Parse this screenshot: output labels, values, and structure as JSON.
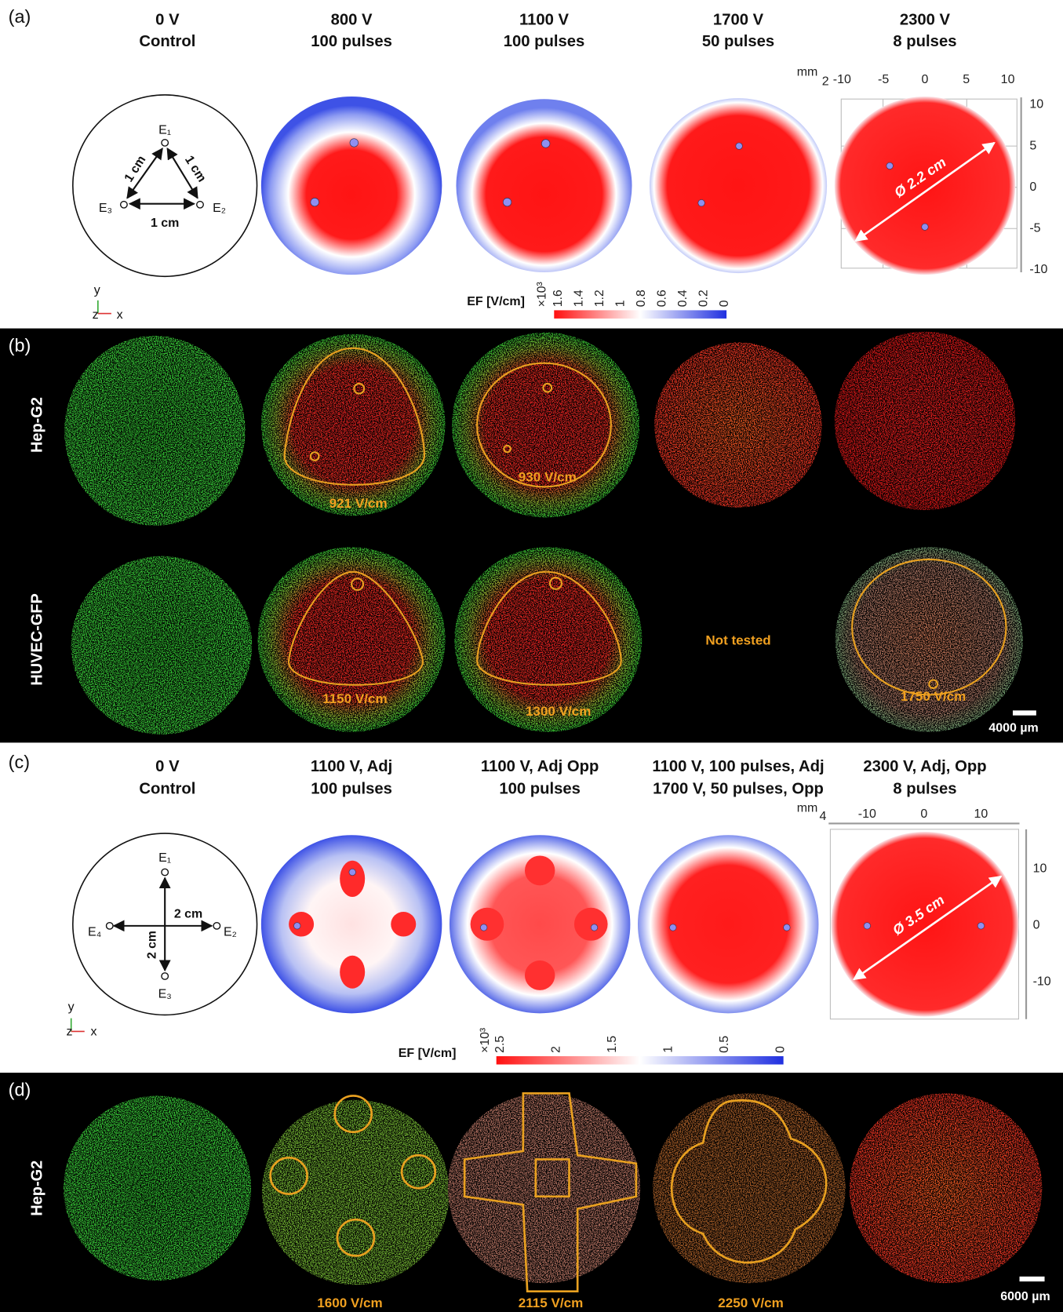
{
  "panel_a": {
    "label": "(a)",
    "columns": [
      {
        "voltage": "0 V",
        "condition": "Control"
      },
      {
        "voltage": "800 V",
        "condition": "100 pulses"
      },
      {
        "voltage": "1100 V",
        "condition": "100 pulses"
      },
      {
        "voltage": "1700 V",
        "condition": "50 pulses"
      },
      {
        "voltage": "2300 V",
        "condition": "8 pulses"
      }
    ],
    "electrodes": [
      "E₁",
      "E₂",
      "E₃"
    ],
    "distances": [
      "1 cm",
      "1 cm",
      "1 cm"
    ],
    "axes": {
      "y": "y",
      "z": "z",
      "x": "x"
    },
    "colorbar": {
      "title": "EF [V/cm]",
      "multiplier": "×10³",
      "ticks": [
        "1.6",
        "1.4",
        "1.2",
        "1",
        "0.8",
        "0.6",
        "0.4",
        "0.2",
        "0"
      ]
    },
    "ruler": {
      "unit": "mm",
      "corner": "2",
      "top_ticks": [
        "-10",
        "-5",
        "0",
        "5",
        "10"
      ],
      "right_ticks": [
        "10",
        "5",
        "0",
        "-5",
        "-10"
      ],
      "diameter": "Ø 2.2 cm"
    }
  },
  "panel_b": {
    "label": "(b)",
    "rows": [
      "Hep-G2",
      "HUVEC-GFP"
    ],
    "hepg2_labels": [
      "921 V/cm",
      "930 V/cm"
    ],
    "huvec_labels": [
      "1150 V/cm",
      "1300 V/cm",
      "1750 V/cm"
    ],
    "not_tested": "Not tested",
    "scale_bar": "4000 µm"
  },
  "panel_c": {
    "label": "(c)",
    "columns": [
      {
        "line1": "0 V",
        "line2": "Control"
      },
      {
        "line1": "1100 V, Adj",
        "line2": "100 pulses"
      },
      {
        "line1": "1100 V, Adj Opp",
        "line2": "100 pulses"
      },
      {
        "line1": "1100 V, 100 pulses, Adj",
        "line2": "1700 V, 50 pulses, Opp"
      },
      {
        "line1": "2300 V, Adj, Opp",
        "line2": "8 pulses"
      }
    ],
    "electrodes": [
      "E₁",
      "E₂",
      "E₃",
      "E₄"
    ],
    "distances": [
      "2 cm",
      "2 cm"
    ],
    "axes": {
      "y": "y",
      "z": "z",
      "x": "x"
    },
    "colorbar": {
      "title": "EF [V/cm]",
      "multiplier": "×10³",
      "ticks": [
        "2.5",
        "2",
        "1.5",
        "1",
        "0.5",
        "0"
      ]
    },
    "ruler": {
      "unit": "mm",
      "corner": "4",
      "top_ticks": [
        "-10",
        "0",
        "10"
      ],
      "right_ticks": [
        "10",
        "0",
        "-10"
      ],
      "diameter": "Ø 3.5 cm"
    }
  },
  "panel_d": {
    "label": "(d)",
    "row": "Hep-G2",
    "field_labels": [
      "1600 V/cm",
      "2115 V/cm",
      "2250 V/cm"
    ],
    "scale_bar": "6000 µm"
  }
}
